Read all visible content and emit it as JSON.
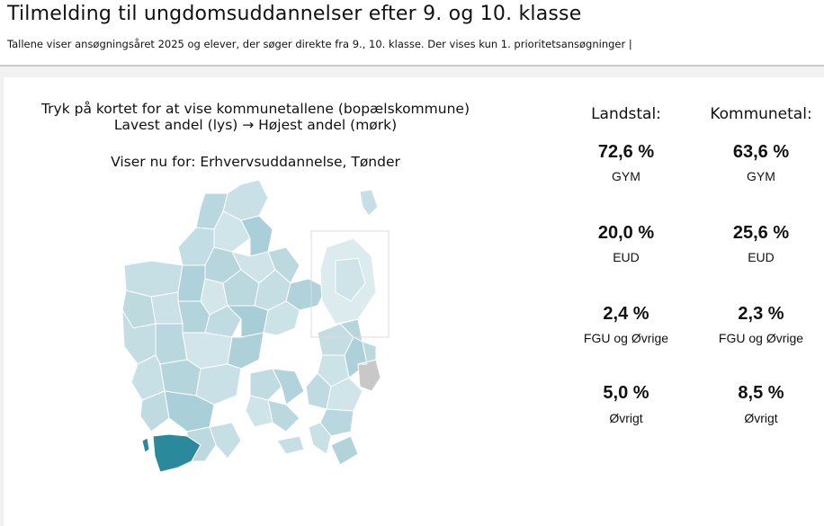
{
  "header": {
    "title": "Tilmelding til ungdomsuddannelser efter 9. og 10. klasse",
    "subtitle": "Tallene viser ansøgningsåret 2025 og elever, der søger direkte fra 9., 10. klasse. Der vises kun 1. prioritetsansøgninger |"
  },
  "map_panel": {
    "instruction_line1": "Tryk på kortet for at vise kommunetallene (bopælskommune)",
    "instruction_line2": "Lavest andel (lys) → Højest andel (mørk)",
    "showing_text": "Viser nu for: Erhvervsuddannelse, Tønder",
    "colors": {
      "light": "#d6e8ec",
      "mid": "#b3d3db",
      "dark": "#9cc6d0",
      "selected": "#2a8a9c",
      "unavailable": "#c8c8c8",
      "border": "#ffffff"
    }
  },
  "stats": {
    "national": {
      "heading": "Landstal:",
      "items": [
        {
          "value": "72,6 %",
          "label": "GYM"
        },
        {
          "value": "20,0 %",
          "label": "EUD"
        },
        {
          "value": "2,4 %",
          "label": "FGU og Øvrige"
        },
        {
          "value": "5,0 %",
          "label": "Øvrigt"
        }
      ]
    },
    "municipal": {
      "heading": "Kommunetal:",
      "items": [
        {
          "value": "63,6 %",
          "label": "GYM"
        },
        {
          "value": "25,6 %",
          "label": "EUD"
        },
        {
          "value": "2,3 %",
          "label": "FGU og Øvrige"
        },
        {
          "value": "8,5 %",
          "label": "Øvrigt"
        }
      ]
    }
  }
}
